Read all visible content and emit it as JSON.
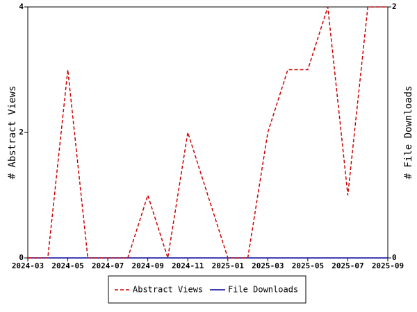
{
  "chart_data": {
    "type": "line",
    "x": [
      "2024-03",
      "2024-04",
      "2024-05",
      "2024-06",
      "2024-07",
      "2024-08",
      "2024-09",
      "2024-10",
      "2024-11",
      "2024-12",
      "2025-01",
      "2025-02",
      "2025-03",
      "2025-04",
      "2025-05",
      "2025-06",
      "2025-07",
      "2025-08",
      "2025-09"
    ],
    "xticks": [
      "2024-03",
      "2024-05",
      "2024-07",
      "2024-09",
      "2024-11",
      "2025-01",
      "2025-03",
      "2025-05",
      "2025-07",
      "2025-09"
    ],
    "ylabel": "# Abstract Views",
    "y2label": "# File Downloads",
    "ylim": [
      0,
      4
    ],
    "yticks": [
      0,
      2,
      4
    ],
    "y2lim": [
      0,
      2
    ],
    "y2ticks": [
      0,
      2
    ],
    "series": [
      {
        "name": "Abstract Views",
        "color": "#cc0000",
        "dashed": true,
        "values": [
          0,
          0,
          3,
          0,
          0,
          0,
          1,
          0,
          2,
          1,
          0,
          0,
          2,
          3,
          3,
          4,
          1,
          4,
          4
        ]
      },
      {
        "name": "File Downloads",
        "color": "#000099",
        "dashed": false,
        "axis": "y2",
        "values": [
          0,
          0,
          0,
          0,
          0,
          0,
          0,
          0,
          0,
          0,
          0,
          0,
          0,
          0,
          0,
          0,
          0,
          0,
          0
        ]
      }
    ]
  }
}
